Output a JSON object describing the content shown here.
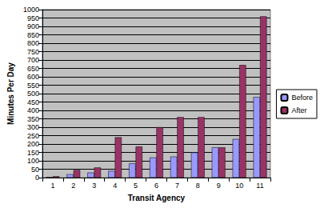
{
  "chart_data": {
    "type": "bar",
    "x_label": "Transit Agency",
    "y_label": "Minutes Per Day",
    "categories": [
      "1",
      "2",
      "3",
      "4",
      "5",
      "6",
      "7",
      "8",
      "9",
      "10",
      "11"
    ],
    "series": [
      {
        "name": "Before",
        "color": "#9999ff",
        "values": [
          3,
          20,
          30,
          40,
          85,
          120,
          125,
          150,
          180,
          230,
          480
        ]
      },
      {
        "name": "After",
        "color": "#993366",
        "values": [
          8,
          45,
          60,
          240,
          185,
          300,
          360,
          360,
          180,
          670,
          960
        ]
      }
    ],
    "ylim": [
      0,
      1000
    ],
    "yticks": [
      0,
      50,
      100,
      150,
      200,
      250,
      300,
      350,
      400,
      450,
      500,
      550,
      600,
      650,
      700,
      750,
      800,
      850,
      900,
      950,
      1000
    ],
    "grid": true,
    "legend": "right"
  }
}
